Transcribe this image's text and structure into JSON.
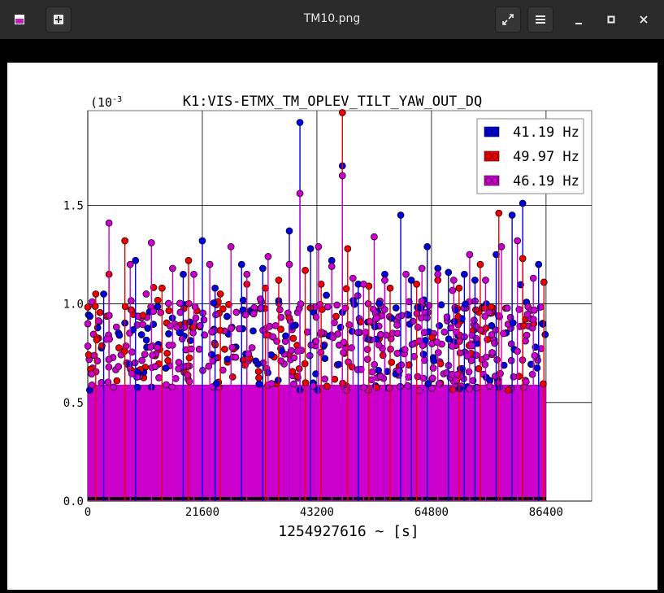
{
  "window": {
    "title": "TM10.png",
    "icons": [
      "app-icon",
      "new-tab-icon",
      "fullscreen-icon",
      "menu-icon",
      "minimize-icon",
      "maximize-icon",
      "close-icon"
    ]
  },
  "chart_data": {
    "type": "scatter",
    "title": "K1:VIS-ETMX_TM_OPLEV_TILT_YAW_OUT_DQ",
    "xlabel": "1254927616 ~ [s]",
    "ylabel": "",
    "y_multiplier": "(10",
    "y_multiplier_exp": "-3",
    "xlim": [
      0,
      95000
    ],
    "ylim": [
      0,
      1.98
    ],
    "x_ticks": [
      "0",
      "21600",
      "43200",
      "64800",
      "86400"
    ],
    "y_ticks": [
      "0.0",
      "0.5",
      "1.0",
      "1.5"
    ],
    "grid": true,
    "legend_position": "top-right",
    "series": [
      {
        "name": "41.19 Hz",
        "color": "#0000dd",
        "x": [
          3000,
          9000,
          18000,
          21600,
          24000,
          29000,
          33000,
          38000,
          40000,
          42000,
          46000,
          48000,
          51000,
          56000,
          59000,
          61000,
          64000,
          66000,
          68000,
          71000,
          73000,
          77000,
          80000,
          82000,
          85000
        ],
        "values": [
          1.05,
          1.22,
          1.15,
          1.32,
          1.08,
          1.2,
          1.18,
          1.37,
          1.92,
          1.28,
          1.22,
          1.7,
          1.1,
          1.15,
          1.45,
          1.12,
          1.29,
          1.18,
          1.16,
          1.15,
          1.12,
          1.25,
          1.45,
          1.51,
          1.2
        ]
      },
      {
        "name": "49.97 Hz",
        "color": "#ee0000",
        "x": [
          1500,
          4000,
          7000,
          14000,
          19000,
          25000,
          30000,
          33500,
          36000,
          41000,
          44000,
          48000,
          49000,
          53000,
          57000,
          62000,
          66000,
          70000,
          74000,
          77500,
          82000,
          86000
        ],
        "values": [
          1.05,
          1.15,
          1.32,
          1.08,
          1.22,
          1.05,
          1.1,
          1.08,
          1.12,
          1.17,
          1.1,
          1.97,
          1.28,
          1.09,
          1.08,
          1.1,
          1.12,
          1.08,
          1.2,
          1.46,
          1.23,
          1.11
        ]
      },
      {
        "name": "46.19 Hz",
        "color": "#cc00cc",
        "x": [
          4000,
          8000,
          12000,
          16000,
          20000,
          23000,
          27000,
          30000,
          34000,
          38000,
          40000,
          43500,
          46000,
          48000,
          50000,
          52000,
          54000,
          56000,
          60000,
          63000,
          66000,
          69000,
          72000,
          75000,
          78000,
          81000,
          84000
        ],
        "values": [
          1.41,
          1.2,
          1.31,
          1.18,
          1.15,
          1.2,
          1.29,
          1.15,
          1.24,
          1.2,
          1.56,
          1.29,
          1.19,
          1.65,
          1.13,
          1.1,
          1.34,
          1.12,
          1.15,
          1.18,
          1.15,
          1.12,
          1.25,
          1.12,
          1.29,
          1.32,
          1.13
        ]
      }
    ],
    "baseline_band": {
      "min": 0.56,
      "max": 1.02
    }
  }
}
